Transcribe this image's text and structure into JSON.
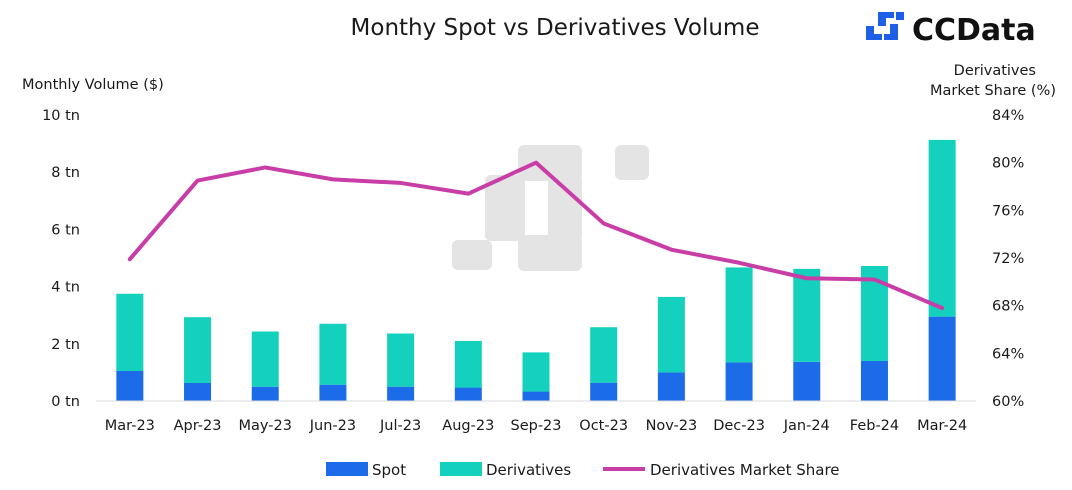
{
  "brand": {
    "name": "CCData",
    "icon": "ccdata-logo-icon",
    "color": "#1f5fe6"
  },
  "chart_data": {
    "type": "bar",
    "stacked": true,
    "title": "Monthy Spot vs Derivatives Volume",
    "ylabel": "Monthly Volume ($)",
    "y2label": [
      "Derivatives",
      "Market Share (%)"
    ],
    "categories": [
      "Mar-23",
      "Apr-23",
      "May-23",
      "Jun-23",
      "Jul-23",
      "Aug-23",
      "Sep-23",
      "Oct-23",
      "Nov-23",
      "Dec-23",
      "Jan-24",
      "Feb-24",
      "Mar-24"
    ],
    "ylim": [
      0,
      10
    ],
    "yticks": [
      0,
      2,
      4,
      6,
      8,
      10
    ],
    "ytick_labels": [
      "0 tn",
      "2 tn",
      "4 tn",
      "6 tn",
      "8 tn",
      "10 tn"
    ],
    "y2lim": [
      60,
      84
    ],
    "y2ticks": [
      60,
      64,
      68,
      72,
      76,
      80,
      84
    ],
    "y2tick_labels": [
      "60%",
      "64%",
      "68%",
      "72%",
      "76%",
      "80%",
      "84%"
    ],
    "series": [
      {
        "name": "Spot",
        "kind": "bar",
        "color": "#1c6be8",
        "values": [
          1.05,
          0.63,
          0.5,
          0.57,
          0.5,
          0.47,
          0.33,
          0.64,
          1.0,
          1.35,
          1.37,
          1.4,
          2.95
        ]
      },
      {
        "name": "Derivatives",
        "kind": "bar",
        "color": "#14d1bd",
        "values": [
          2.7,
          2.3,
          1.93,
          2.13,
          1.86,
          1.63,
          1.37,
          1.94,
          2.64,
          3.32,
          3.25,
          3.32,
          6.18
        ]
      },
      {
        "name": "Derivatives Market Share",
        "kind": "line",
        "axis": "right",
        "color": "#c93da7",
        "values": [
          71.9,
          78.5,
          79.6,
          78.6,
          78.3,
          77.4,
          80.0,
          74.9,
          72.7,
          71.6,
          70.3,
          70.2,
          67.8
        ]
      }
    ],
    "grid": false,
    "legend": "bottom"
  }
}
